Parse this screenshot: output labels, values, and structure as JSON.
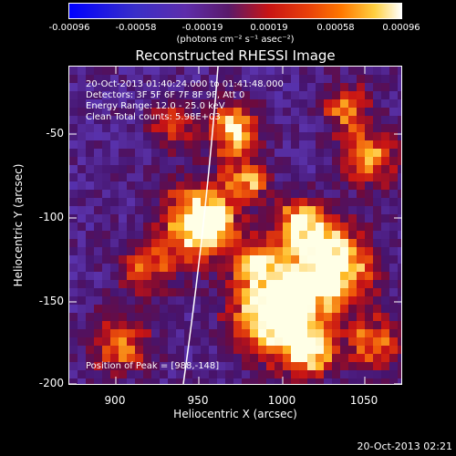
{
  "colorbar": {
    "ticks": [
      "-0.00096",
      "-0.00058",
      "-0.00019",
      "0.00019",
      "0.00058",
      "0.00096"
    ],
    "units": "(photons cm⁻² s⁻¹ asec⁻²)"
  },
  "title": "Reconstructed RHESSI Image",
  "info": {
    "time_range": "20-Oct-2013 01:40:24.000 to 01:41:48.000",
    "detectors": "Detectors: 3F 5F 6F 7F 8F 9F, Att 0",
    "energy": "Energy Range: 12.0 - 25.0 keV",
    "clean": "Clean    Total counts: 5.98E+03",
    "peak": "Position of Peak = [988,-148]"
  },
  "axes": {
    "xlabel": "Heliocentric X (arcsec)",
    "ylabel": "Heliocentric Y (arcsec)",
    "xticks": [
      "900",
      "950",
      "1000",
      "1050"
    ],
    "yticks": [
      "-50",
      "-100",
      "-150",
      "-200"
    ]
  },
  "timestamp": "20-Oct-2013 02:21",
  "colors": {
    "low": "#0000ff",
    "mid_low": "#5e2dab",
    "mid": "#3c0a64",
    "red": "#c81414",
    "orange": "#ff7800",
    "white": "#ffffff"
  }
}
